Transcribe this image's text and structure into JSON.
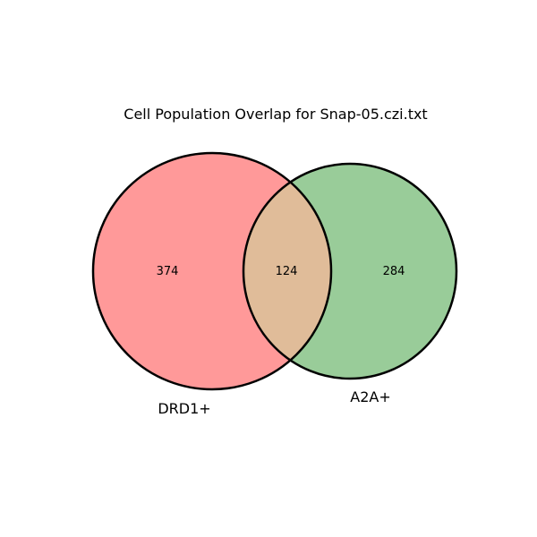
{
  "title": "Cell Population Overlap for Snap-05.czi.txt",
  "sets": [
    {
      "label": "DRD1+",
      "color": "#ff9999"
    },
    {
      "label": "A2A+",
      "color": "#99cc99"
    }
  ],
  "regions": {
    "only_a": "374",
    "intersection": "124",
    "only_b": "284"
  },
  "colors": {
    "intersection": "#e0bc99",
    "outline": "#000000"
  }
}
